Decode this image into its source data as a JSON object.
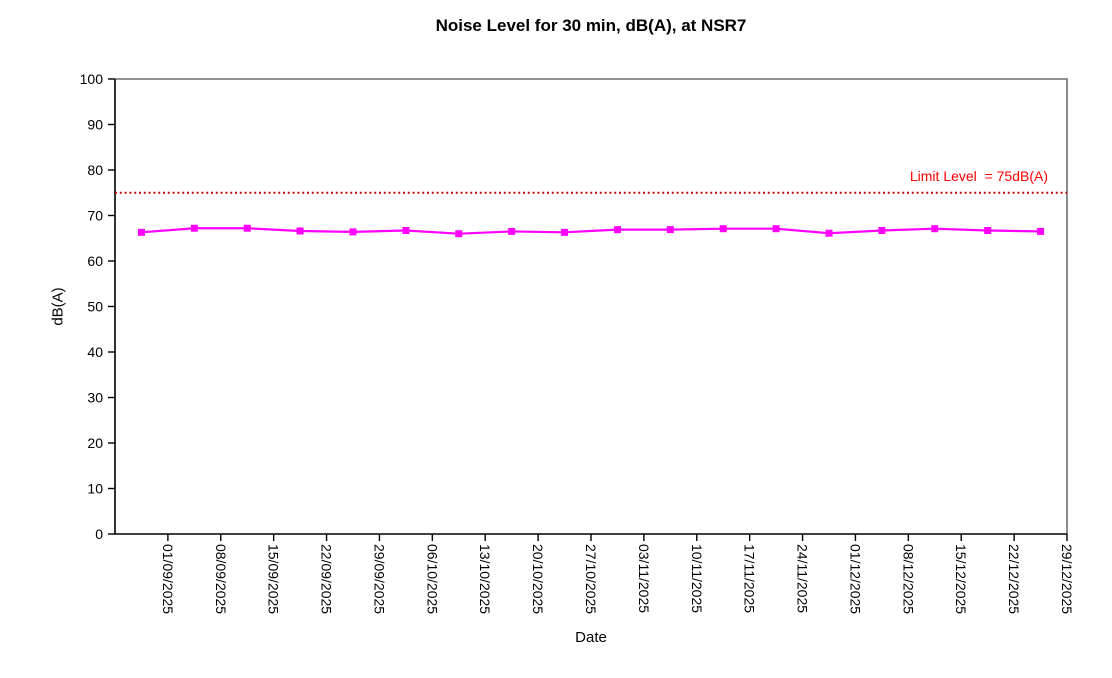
{
  "page": {
    "background": "#ffffff"
  },
  "chart_data": {
    "type": "line",
    "title": "Noise Level for 30 min, dB(A), at NSR7",
    "xlabel": "Date",
    "ylabel": "dB(A)",
    "ylim": [
      0,
      100
    ],
    "yticks": [
      0,
      10,
      20,
      30,
      40,
      50,
      60,
      70,
      80,
      90,
      100
    ],
    "grid": false,
    "legend": "none",
    "x_label_rotation_deg": 90,
    "axis_color": "#000000",
    "border_color": "#808080",
    "categories": [
      "01/09/2025",
      "08/09/2025",
      "15/09/2025",
      "22/09/2025",
      "29/09/2025",
      "06/10/2025",
      "13/10/2025",
      "20/10/2025",
      "27/10/2025",
      "03/11/2025",
      "10/11/2025",
      "17/11/2025",
      "24/11/2025",
      "01/12/2025",
      "08/12/2025",
      "15/12/2025",
      "22/12/2025",
      "29/12/2025"
    ],
    "series": [
      {
        "color": "#ff00ff",
        "marker": "square",
        "values": [
          66.3,
          67.2,
          67.2,
          66.6,
          66.4,
          66.7,
          66.0,
          66.5,
          66.3,
          66.9,
          66.9,
          67.1,
          67.1,
          66.1,
          66.7,
          67.1,
          66.7,
          66.5
        ]
      }
    ],
    "limit_line": {
      "value": 75,
      "label": "Limit Level  = 75dB(A)",
      "style": "dotted",
      "line_color": "#c00000",
      "label_color": "#ff0000"
    }
  }
}
